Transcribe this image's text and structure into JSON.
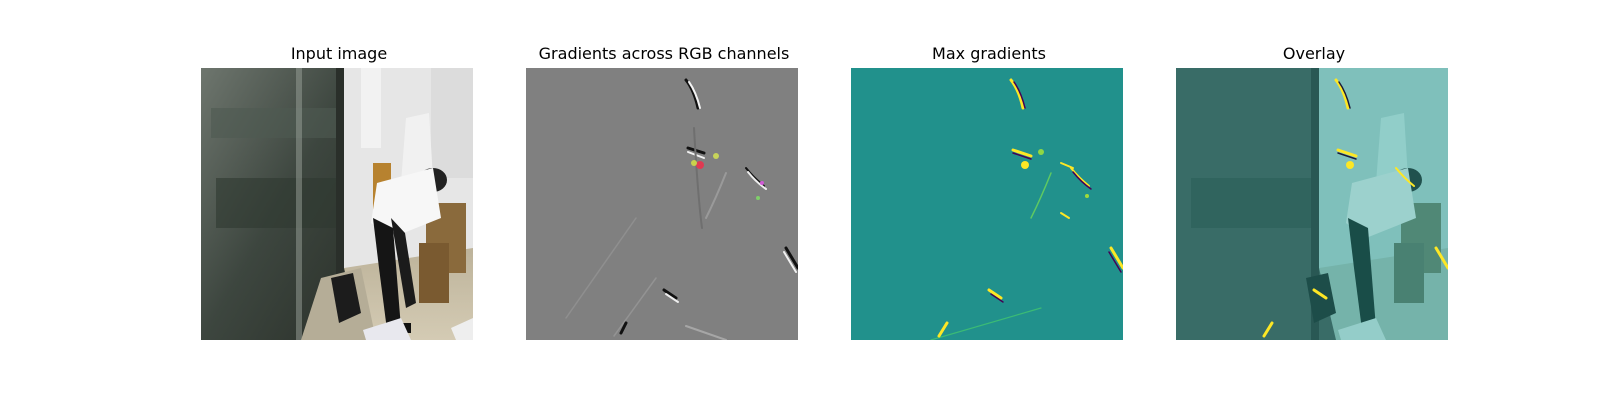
{
  "panels": [
    {
      "title": "Input image"
    },
    {
      "title": "Gradients across RGB channels"
    },
    {
      "title": "Max gradients"
    },
    {
      "title": "Overlay"
    }
  ],
  "colors": {
    "background": "#ffffff",
    "gradient_gray": "#808080",
    "max_gradient_teal": "#21918c",
    "overlay_tint": "#29a39b"
  }
}
